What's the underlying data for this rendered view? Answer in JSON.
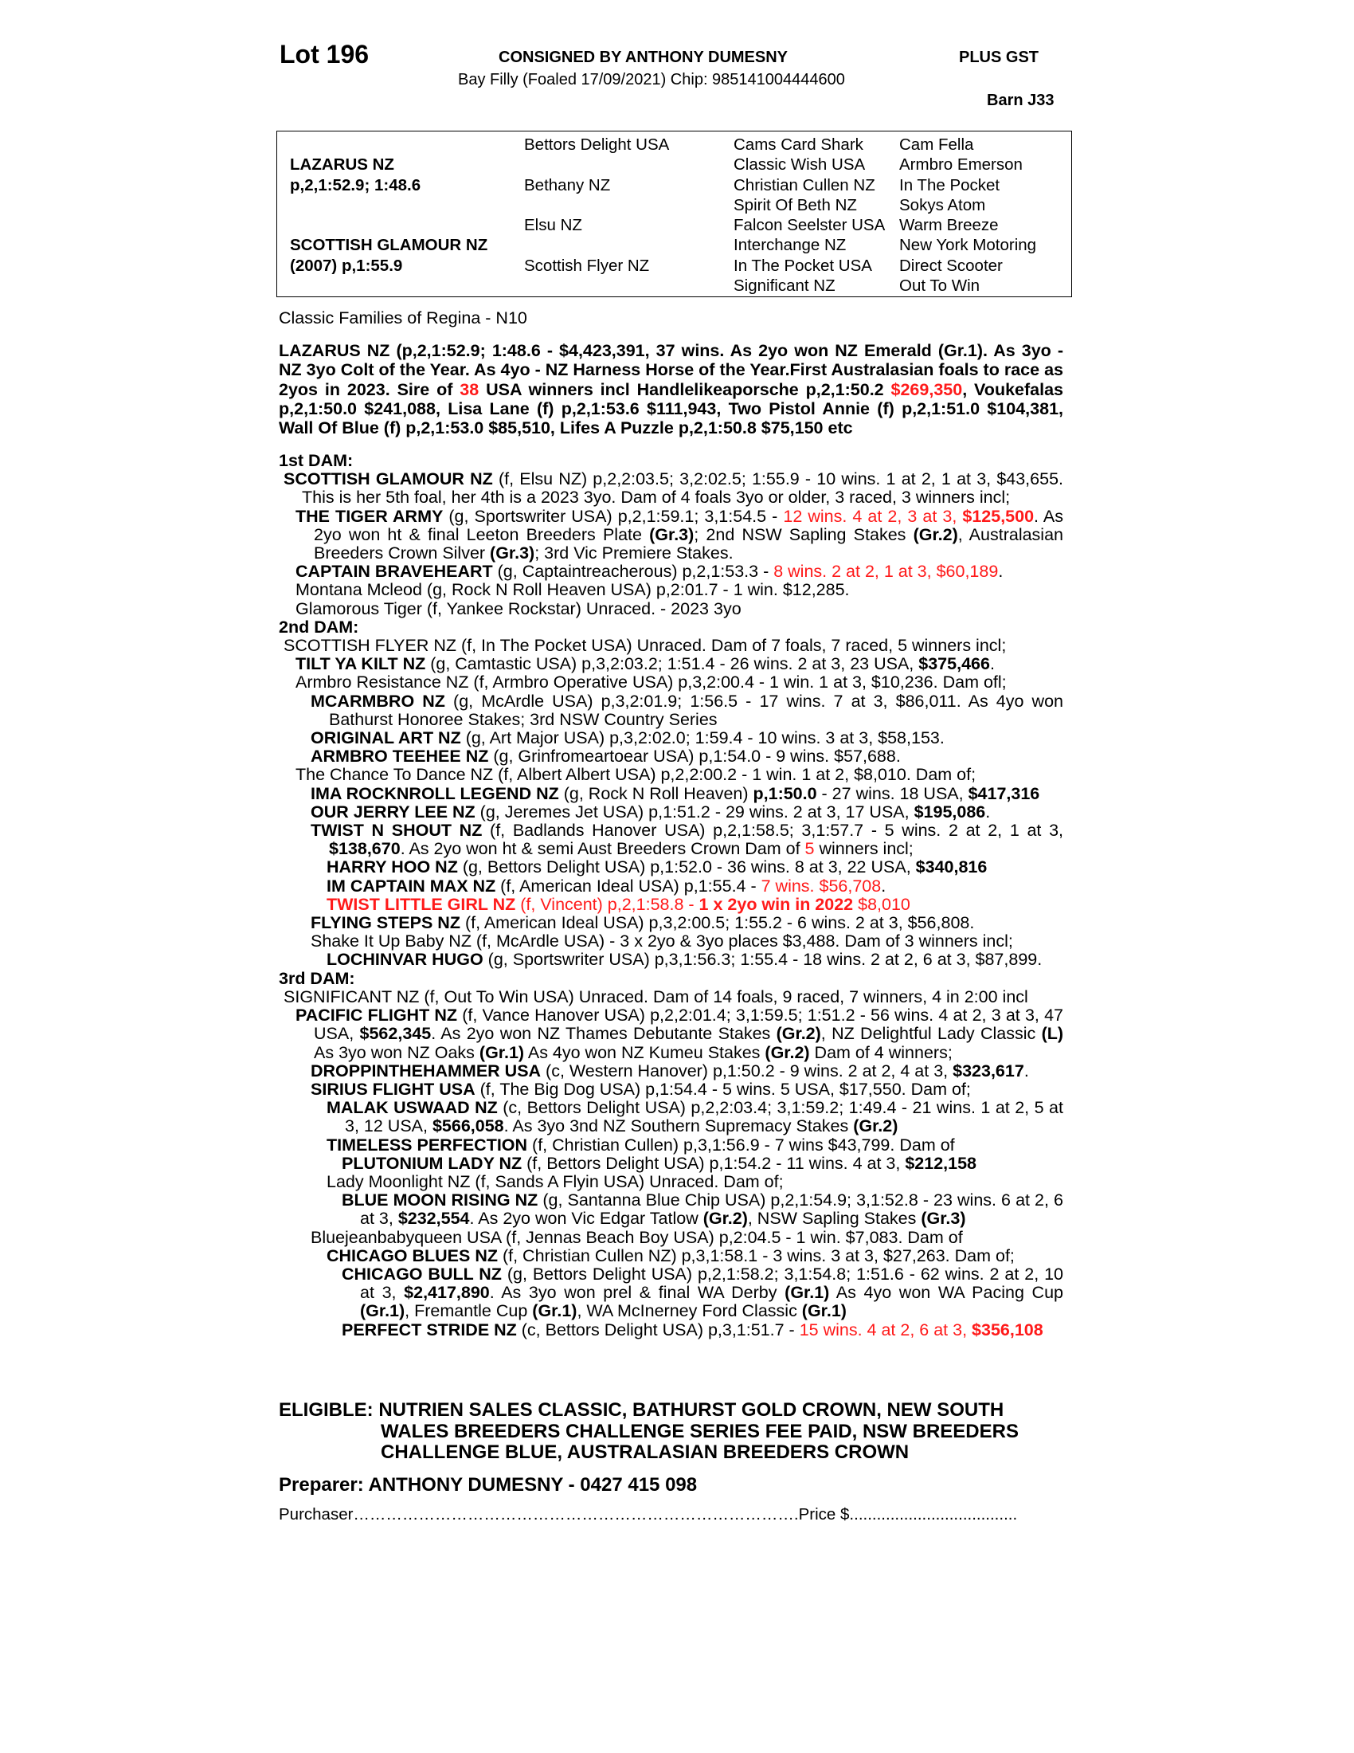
{
  "header": {
    "lot": "Lot 196",
    "consigned": "CONSIGNED BY ANTHONY DUMESNY",
    "gst": "PLUS GST",
    "description": "Bay Filly (Foaled 17/09/2021) Chip: 985141004444600",
    "barn": "Barn J33"
  },
  "pedigree": {
    "sire_name": "LAZARUS NZ",
    "sire_record": "p,2,1:52.9; 1:48.6",
    "dam_name": "SCOTTISH GLAMOUR NZ",
    "dam_record": "(2007) p,1:55.9",
    "gen2": [
      "Bettors Delight USA",
      "Bethany NZ",
      "Elsu NZ",
      "Scottish Flyer NZ"
    ],
    "gen3": [
      "Cams Card Shark",
      "Classic Wish USA",
      "Christian Cullen NZ",
      "Spirit Of Beth NZ",
      "Falcon Seelster USA",
      "Interchange NZ",
      "In The Pocket USA",
      "Significant NZ"
    ],
    "gen4": [
      "Cam Fella",
      "Armbro Emerson",
      "In The Pocket",
      "Sokys Atom",
      "Warm Breeze",
      "New York Motoring",
      "Direct Scooter",
      "Out To Win"
    ]
  },
  "family": "Classic Families of Regina - N10",
  "sire_para": {
    "segs": [
      {
        "s": "b",
        "t": "LAZARUS NZ (p,2,1:52.9; 1:48.6 - $4,423,391, 37 wins. As 2yo won NZ Emerald (Gr.1). As 3yo - NZ 3yo Colt of the Year. As 4yo - NZ Harness Horse of the Year.First Australasian foals to race as 2yos in 2023. Sire of "
      },
      {
        "s": "rb",
        "t": "38"
      },
      {
        "s": "b",
        "t": " USA winners incl Handlelikeaporsche p,2,1:50.2 "
      },
      {
        "s": "rb",
        "t": "$269,350"
      },
      {
        "s": "b",
        "t": ", Voukefalas p,2,1:50.0 $241,088, Lisa Lane (f) p,2,1:53.6 $111,943, Two Pistol Annie (f) p,2,1:51.0 $104,381, Wall Of Blue (f) p,2,1:53.0 $85,510, Lifes A Puzzle p,2,1:50.8 $75,150 etc"
      }
    ]
  },
  "sections": [
    {
      "heading": "1st DAM:",
      "paras": [
        {
          "lv": 0,
          "segs": [
            {
              "s": "b",
              "t": "SCOTTISH GLAMOUR NZ"
            },
            {
              "s": "n",
              "t": " (f, Elsu NZ) p,2,2:03.5; 3,2:02.5; 1:55.9 - 10 wins. 1 at 2, 1 at 3, $43,655. This is her 5th foal, her 4th is a 2023 3yo. Dam of 4 foals 3yo or older, 3 raced, 3 winners incl;"
            }
          ]
        },
        {
          "lv": 1,
          "segs": [
            {
              "s": "b",
              "t": "THE TIGER ARMY"
            },
            {
              "s": "n",
              "t": " (g, Sportswriter USA) p,2,1:59.1; 3,1:54.5 - "
            },
            {
              "s": "r",
              "t": "12 wins. 4 at 2, 3 at 3, "
            },
            {
              "s": "rb",
              "t": "$125,500"
            },
            {
              "s": "n",
              "t": ". As 2yo won ht & final Leeton Breeders Plate "
            },
            {
              "s": "b",
              "t": "(Gr.3)"
            },
            {
              "s": "n",
              "t": "; 2nd NSW Sapling Stakes "
            },
            {
              "s": "b",
              "t": "(Gr.2)"
            },
            {
              "s": "n",
              "t": ", Australasian Breeders Crown Silver "
            },
            {
              "s": "b",
              "t": "(Gr.3)"
            },
            {
              "s": "n",
              "t": "; 3rd Vic Premiere Stakes."
            }
          ]
        },
        {
          "lv": 1,
          "segs": [
            {
              "s": "b",
              "t": "CAPTAIN BRAVEHEART"
            },
            {
              "s": "n",
              "t": " (g, Captaintreacherous) p,2,1:53.3 - "
            },
            {
              "s": "r",
              "t": "8 wins. 2 at 2, 1 at 3, $60,189"
            },
            {
              "s": "n",
              "t": "."
            }
          ]
        },
        {
          "lv": 1,
          "segs": [
            {
              "s": "n",
              "t": "Montana Mcleod (g, Rock N Roll Heaven USA) p,2:01.7 - 1 win. $12,285."
            }
          ]
        },
        {
          "lv": 1,
          "segs": [
            {
              "s": "n",
              "t": "Glamorous Tiger (f, Yankee Rockstar) Unraced. - 2023 3yo"
            }
          ]
        }
      ]
    },
    {
      "heading": "2nd DAM:",
      "paras": [
        {
          "lv": 0,
          "segs": [
            {
              "s": "n",
              "t": "SCOTTISH FLYER NZ (f, In The Pocket USA) Unraced. Dam of 7 foals, 7 raced, 5 winners incl;"
            }
          ]
        },
        {
          "lv": 1,
          "segs": [
            {
              "s": "b",
              "t": "TILT YA KILT NZ"
            },
            {
              "s": "n",
              "t": " (g, Camtastic USA) p,3,2:03.2; 1:51.4 - 26 wins. 2 at 3, 23 USA, "
            },
            {
              "s": "b",
              "t": "$375,466"
            },
            {
              "s": "n",
              "t": "."
            }
          ]
        },
        {
          "lv": 1,
          "segs": [
            {
              "s": "n",
              "t": "Armbro Resistance NZ (f, Armbro Operative USA) p,3,2:00.4 - 1 win. 1 at 3, $10,236. Dam ofl;"
            }
          ]
        },
        {
          "lv": 2,
          "segs": [
            {
              "s": "b",
              "t": "MCARMBRO NZ"
            },
            {
              "s": "n",
              "t": " (g, McArdle USA) p,3,2:01.9; 1:56.5 - 17 wins. 7 at 3, $86,011. As 4yo won Bathurst Honoree Stakes; 3rd NSW Country Series"
            }
          ]
        },
        {
          "lv": 2,
          "segs": [
            {
              "s": "b",
              "t": "ORIGINAL ART NZ"
            },
            {
              "s": "n",
              "t": " (g, Art Major USA) p,3,2:02.0; 1:59.4 - 10 wins. 3 at 3, $58,153."
            }
          ]
        },
        {
          "lv": 2,
          "segs": [
            {
              "s": "b",
              "t": "ARMBRO TEEHEE NZ"
            },
            {
              "s": "n",
              "t": " (g, Grinfromeartoear USA) p,1:54.0 - 9 wins. $57,688."
            }
          ]
        },
        {
          "lv": 1,
          "segs": [
            {
              "s": "n",
              "t": "The Chance To Dance NZ (f, Albert Albert USA) p,2,2:00.2 - 1 win. 1 at 2, $8,010. Dam of;"
            }
          ]
        },
        {
          "lv": 2,
          "segs": [
            {
              "s": "b",
              "t": "IMA ROCKNROLL LEGEND NZ"
            },
            {
              "s": "n",
              "t": " (g, Rock N Roll Heaven) "
            },
            {
              "s": "b",
              "t": "p,1:50.0"
            },
            {
              "s": "n",
              "t": " - 27 wins. 18 USA, "
            },
            {
              "s": "b",
              "t": "$417,316"
            }
          ]
        },
        {
          "lv": 2,
          "segs": [
            {
              "s": "b",
              "t": "OUR JERRY LEE NZ"
            },
            {
              "s": "n",
              "t": " (g, Jeremes Jet USA) p,1:51.2 - 29 wins. 2 at 3, 17 USA, "
            },
            {
              "s": "b",
              "t": "$195,086"
            },
            {
              "s": "n",
              "t": "."
            }
          ]
        },
        {
          "lv": 2,
          "segs": [
            {
              "s": "b",
              "t": "TWIST N SHOUT NZ"
            },
            {
              "s": "n",
              "t": " (f, Badlands Hanover USA) p,2,1:58.5; 3,1:57.7 - 5 wins. 2 at 2, 1 at 3, "
            },
            {
              "s": "b",
              "t": "$138,670"
            },
            {
              "s": "n",
              "t": ". As 2yo won ht & semi Aust Breeders Crown Dam of "
            },
            {
              "s": "r",
              "t": "5"
            },
            {
              "s": "n",
              "t": " winners incl;"
            }
          ]
        },
        {
          "lv": 3,
          "segs": [
            {
              "s": "b",
              "t": "HARRY HOO NZ"
            },
            {
              "s": "n",
              "t": " (g, Bettors Delight USA) p,1:52.0 - 36 wins. 8 at 3, 22 USA, "
            },
            {
              "s": "b",
              "t": "$340,816"
            }
          ]
        },
        {
          "lv": 3,
          "segs": [
            {
              "s": "b",
              "t": "IM CAPTAIN MAX NZ"
            },
            {
              "s": "n",
              "t": " (f, American Ideal USA) p,1:55.4 - "
            },
            {
              "s": "r",
              "t": "7 wins. $56,708"
            },
            {
              "s": "n",
              "t": "."
            }
          ]
        },
        {
          "lv": 3,
          "segs": [
            {
              "s": "rb",
              "t": "TWIST LITTLE GIRL NZ"
            },
            {
              "s": "r",
              "t": " (f, Vincent) p,2,1:58.8 - "
            },
            {
              "s": "rb",
              "t": "1 x 2yo win in 2022"
            },
            {
              "s": "r",
              "t": " $8,010"
            }
          ]
        },
        {
          "lv": 2,
          "segs": [
            {
              "s": "b",
              "t": "FLYING STEPS NZ"
            },
            {
              "s": "n",
              "t": " (f, American Ideal USA) p,3,2:00.5; 1:55.2 - 6 wins. 2 at 3, $56,808."
            }
          ]
        },
        {
          "lv": 2,
          "segs": [
            {
              "s": "n",
              "t": "Shake It Up Baby NZ (f, McArdle USA) - 3 x 2yo & 3yo places $3,488. Dam of 3 winners incl;"
            }
          ]
        },
        {
          "lv": 3,
          "segs": [
            {
              "s": "b",
              "t": "LOCHINVAR HUGO"
            },
            {
              "s": "n",
              "t": " (g, Sportswriter USA) p,3,1:56.3; 1:55.4 - 18 wins. 2 at 2, 6 at 3, $87,899."
            }
          ]
        }
      ]
    },
    {
      "heading": "3rd DAM:",
      "paras": [
        {
          "lv": 0,
          "segs": [
            {
              "s": "n",
              "t": "SIGNIFICANT NZ (f, Out To Win USA) Unraced. Dam of 14 foals, 9 raced, 7 winners, 4 in 2:00 incl"
            }
          ]
        },
        {
          "lv": 1,
          "segs": [
            {
              "s": "b",
              "t": "PACIFIC FLIGHT NZ"
            },
            {
              "s": "n",
              "t": " (f, Vance Hanover USA) p,2,2:01.4; 3,1:59.5; 1:51.2 - 56 wins. 4 at 2, 3 at 3, 47 USA, "
            },
            {
              "s": "b",
              "t": "$562,345"
            },
            {
              "s": "n",
              "t": ". As 2yo won NZ Thames Debutante Stakes "
            },
            {
              "s": "b",
              "t": "(Gr.2)"
            },
            {
              "s": "n",
              "t": ", NZ Delightful Lady Classic "
            },
            {
              "s": "b",
              "t": "(L)"
            },
            {
              "s": "n",
              "t": " As 3yo won NZ Oaks "
            },
            {
              "s": "b",
              "t": "(Gr.1)"
            },
            {
              "s": "n",
              "t": " As 4yo won NZ Kumeu Stakes "
            },
            {
              "s": "b",
              "t": "(Gr.2)"
            },
            {
              "s": "n",
              "t": " Dam of 4 winners;"
            }
          ]
        },
        {
          "lv": 2,
          "segs": [
            {
              "s": "b",
              "t": "DROPPINTHEHAMMER USA"
            },
            {
              "s": "n",
              "t": " (c, Western Hanover) p,1:50.2 - 9 wins. 2 at 2, 4 at 3, "
            },
            {
              "s": "b",
              "t": "$323,617"
            },
            {
              "s": "n",
              "t": "."
            }
          ]
        },
        {
          "lv": 2,
          "segs": [
            {
              "s": "b",
              "t": "SIRIUS FLIGHT USA"
            },
            {
              "s": "n",
              "t": " (f, The Big Dog USA) p,1:54.4 - 5 wins. 5 USA, $17,550. Dam of;"
            }
          ]
        },
        {
          "lv": 3,
          "segs": [
            {
              "s": "b",
              "t": "MALAK USWAAD NZ"
            },
            {
              "s": "n",
              "t": " (c, Bettors Delight USA) p,2,2:03.4; 3,1:59.2; 1:49.4 - 21 wins. 1 at 2, 5 at 3, 12 USA, "
            },
            {
              "s": "b",
              "t": "$566,058"
            },
            {
              "s": "n",
              "t": ". As 3yo 3nd NZ Southern Supremacy Stakes "
            },
            {
              "s": "b",
              "t": "(Gr.2)"
            }
          ]
        },
        {
          "lv": 3,
          "segs": [
            {
              "s": "b",
              "t": "TIMELESS PERFECTION"
            },
            {
              "s": "n",
              "t": " (f, Christian Cullen) p,3,1:56.9 - 7 wins $43,799. Dam of"
            }
          ]
        },
        {
          "lv": 4,
          "segs": [
            {
              "s": "b",
              "t": "PLUTONIUM LADY NZ"
            },
            {
              "s": "n",
              "t": " (f, Bettors Delight USA) p,1:54.2 - 11 wins. 4 at 3, "
            },
            {
              "s": "b",
              "t": "$212,158"
            }
          ]
        },
        {
          "lv": 3,
          "segs": [
            {
              "s": "n",
              "t": "Lady Moonlight NZ (f, Sands A Flyin USA) Unraced. Dam of;"
            }
          ]
        },
        {
          "lv": 4,
          "segs": [
            {
              "s": "b",
              "t": "BLUE MOON RISING NZ"
            },
            {
              "s": "n",
              "t": " (g, Santanna Blue Chip USA) p,2,1:54.9; 3,1:52.8 - 23 wins. 6 at 2, 6 at 3, "
            },
            {
              "s": "b",
              "t": "$232,554"
            },
            {
              "s": "n",
              "t": ". As 2yo won Vic Edgar Tatlow "
            },
            {
              "s": "b",
              "t": "(Gr.2)"
            },
            {
              "s": "n",
              "t": ", NSW Sapling Stakes "
            },
            {
              "s": "b",
              "t": "(Gr.3)"
            }
          ]
        },
        {
          "lv": 2,
          "segs": [
            {
              "s": "n",
              "t": "Bluejeanbabyqueen USA (f, Jennas Beach Boy USA) p,2:04.5 - 1 win. $7,083. Dam of"
            }
          ]
        },
        {
          "lv": 3,
          "segs": [
            {
              "s": "b",
              "t": "CHICAGO BLUES NZ"
            },
            {
              "s": "n",
              "t": " (f, Christian Cullen NZ) p,3,1:58.1 - 3 wins. 3 at 3, $27,263. Dam of;"
            }
          ]
        },
        {
          "lv": 4,
          "segs": [
            {
              "s": "b",
              "t": "CHICAGO BULL NZ"
            },
            {
              "s": "n",
              "t": " (g, Bettors Delight USA) p,2,1:58.2; 3,1:54.8; 1:51.6 - 62 wins. 2 at 2, 10 at 3, "
            },
            {
              "s": "b",
              "t": "$2,417,890"
            },
            {
              "s": "n",
              "t": ". As 3yo won prel & final WA Derby "
            },
            {
              "s": "b",
              "t": "(Gr.1)"
            },
            {
              "s": "n",
              "t": " As 4yo won WA Pacing Cup "
            },
            {
              "s": "b",
              "t": "(Gr.1)"
            },
            {
              "s": "n",
              "t": ", Fremantle Cup "
            },
            {
              "s": "b",
              "t": "(Gr.1)"
            },
            {
              "s": "n",
              "t": ", WA McInerney Ford Classic "
            },
            {
              "s": "b",
              "t": "(Gr.1)"
            }
          ]
        },
        {
          "lv": 4,
          "segs": [
            {
              "s": "b",
              "t": "PERFECT STRIDE NZ"
            },
            {
              "s": "n",
              "t": " (c, Bettors Delight USA) p,3,1:51.7 - "
            },
            {
              "s": "r",
              "t": "15 wins. 4 at 2, 6 at 3, "
            },
            {
              "s": "rb",
              "t": "$356,108"
            }
          ]
        }
      ]
    }
  ],
  "eligible": "ELIGIBLE: NUTRIEN SALES CLASSIC, BATHURST GOLD CROWN, NEW SOUTH WALES BREEDERS CHALLENGE SERIES FEE PAID, NSW BREEDERS CHALLENGE BLUE, AUSTRALASIAN BREEDERS CROWN",
  "preparer": "Preparer: ANTHONY DUMESNY - 0427 415 098",
  "purchaser": "Purchaser……………………………………………………………………….Price $.....................................",
  "colors": {
    "highlight": "#ff1a1a",
    "text": "#000000"
  }
}
